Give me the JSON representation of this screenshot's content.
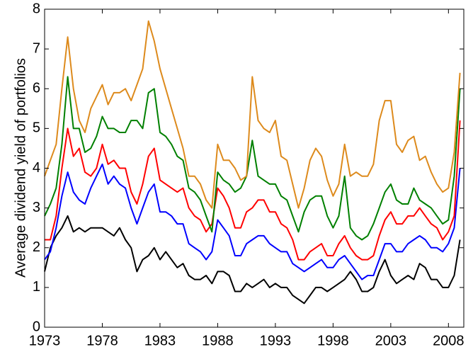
{
  "chart_data": {
    "type": "line",
    "y_label": "Average dividend yield of portfolios",
    "x": [
      1973,
      1973.5,
      1974,
      1974.5,
      1975,
      1975.5,
      1976,
      1976.5,
      1977,
      1977.5,
      1978,
      1978.5,
      1979,
      1979.5,
      1980,
      1980.5,
      1981,
      1981.5,
      1982,
      1982.5,
      1983,
      1983.5,
      1984,
      1984.5,
      1985,
      1985.5,
      1986,
      1986.5,
      1987,
      1987.5,
      1988,
      1988.5,
      1989,
      1989.5,
      1990,
      1990.5,
      1991,
      1991.5,
      1992,
      1992.5,
      1993,
      1993.5,
      1994,
      1994.5,
      1995,
      1995.5,
      1996,
      1996.5,
      1997,
      1997.5,
      1998,
      1998.5,
      1999,
      1999.5,
      2000,
      2000.5,
      2001,
      2001.5,
      2002,
      2002.5,
      2003,
      2003.5,
      2004,
      2004.5,
      2005,
      2005.5,
      2006,
      2006.5,
      2007,
      2007.5,
      2008,
      2008.5,
      2009
    ],
    "series": [
      {
        "color": "#000000",
        "values": [
          1.4,
          2.0,
          2.3,
          2.5,
          2.8,
          2.4,
          2.5,
          2.4,
          2.5,
          2.5,
          2.5,
          2.4,
          2.3,
          2.5,
          2.2,
          2.0,
          1.4,
          1.7,
          1.8,
          2.0,
          1.7,
          1.9,
          1.7,
          1.5,
          1.6,
          1.3,
          1.2,
          1.2,
          1.3,
          1.1,
          1.4,
          1.4,
          1.3,
          0.9,
          0.9,
          1.1,
          1.0,
          1.1,
          1.2,
          1.0,
          1.1,
          1.0,
          1.0,
          0.8,
          0.7,
          0.6,
          0.8,
          1.0,
          1.0,
          0.9,
          1.0,
          1.1,
          1.2,
          1.4,
          1.2,
          0.9,
          0.9,
          1.0,
          1.4,
          1.7,
          1.3,
          1.1,
          1.2,
          1.3,
          1.2,
          1.6,
          1.5,
          1.2,
          1.2,
          1.0,
          1.0,
          1.3,
          2.2
        ]
      },
      {
        "color": "#0000ff",
        "values": [
          1.7,
          1.9,
          2.5,
          3.3,
          3.9,
          3.4,
          3.2,
          3.1,
          3.5,
          3.8,
          4.1,
          3.6,
          3.8,
          3.6,
          3.5,
          3.0,
          2.6,
          3.0,
          3.4,
          3.6,
          2.9,
          2.9,
          2.8,
          2.6,
          2.6,
          2.1,
          2.0,
          1.9,
          1.7,
          1.9,
          2.7,
          2.5,
          2.3,
          1.8,
          1.8,
          2.1,
          2.2,
          2.3,
          2.3,
          2.1,
          2.0,
          1.9,
          1.9,
          1.6,
          1.5,
          1.4,
          1.5,
          1.6,
          1.7,
          1.5,
          1.5,
          1.7,
          1.8,
          1.6,
          1.4,
          1.2,
          1.3,
          1.3,
          1.7,
          2.1,
          2.1,
          1.9,
          1.9,
          2.1,
          2.2,
          2.3,
          2.2,
          2.0,
          2.0,
          1.9,
          2.1,
          2.5,
          4.0
        ]
      },
      {
        "color": "#ff0000",
        "values": [
          2.2,
          2.2,
          2.8,
          4.0,
          5.0,
          4.3,
          4.5,
          3.9,
          3.8,
          4.0,
          4.6,
          4.1,
          4.2,
          4.0,
          4.0,
          3.4,
          3.1,
          3.6,
          4.3,
          4.5,
          3.7,
          3.6,
          3.5,
          3.4,
          3.5,
          3.0,
          2.8,
          2.7,
          2.4,
          2.6,
          3.5,
          3.3,
          3.0,
          2.5,
          2.5,
          2.9,
          3.0,
          3.2,
          3.2,
          2.9,
          2.9,
          2.6,
          2.5,
          2.2,
          1.7,
          1.7,
          1.9,
          2.0,
          2.1,
          1.8,
          1.8,
          2.1,
          2.3,
          2.0,
          1.8,
          1.7,
          1.7,
          1.8,
          2.3,
          2.7,
          2.9,
          2.6,
          2.6,
          2.8,
          2.8,
          3.0,
          2.8,
          2.6,
          2.5,
          2.2,
          2.4,
          2.8,
          5.2
        ]
      },
      {
        "color": "#008000",
        "values": [
          2.8,
          3.1,
          3.5,
          4.6,
          6.3,
          5.0,
          5.0,
          4.4,
          4.5,
          4.8,
          5.3,
          5.0,
          5.0,
          4.9,
          4.9,
          5.2,
          5.2,
          5.0,
          5.9,
          6.0,
          4.9,
          4.8,
          4.6,
          4.3,
          4.2,
          3.5,
          3.4,
          3.2,
          2.8,
          2.4,
          3.9,
          3.7,
          3.6,
          3.4,
          3.5,
          3.8,
          4.7,
          3.8,
          3.7,
          3.6,
          3.6,
          3.3,
          3.2,
          2.8,
          2.4,
          2.9,
          3.2,
          3.3,
          3.3,
          2.8,
          2.5,
          2.8,
          3.8,
          2.5,
          2.3,
          2.2,
          2.3,
          2.6,
          3.0,
          3.4,
          3.6,
          3.2,
          3.1,
          3.1,
          3.5,
          3.2,
          3.1,
          3.0,
          2.8,
          2.6,
          2.7,
          3.8,
          6.0
        ]
      },
      {
        "color": "#dd8a1c",
        "values": [
          3.8,
          4.2,
          4.6,
          6.0,
          7.3,
          6.0,
          5.2,
          4.9,
          5.5,
          5.8,
          6.1,
          5.6,
          5.9,
          5.9,
          6.0,
          5.7,
          6.1,
          6.5,
          7.7,
          7.2,
          6.5,
          6.0,
          5.5,
          5.0,
          4.5,
          3.8,
          3.8,
          3.6,
          3.2,
          3.0,
          4.6,
          4.2,
          4.2,
          4.0,
          3.7,
          3.8,
          6.3,
          5.2,
          5.0,
          4.9,
          5.2,
          4.3,
          4.2,
          3.6,
          3.0,
          3.5,
          4.2,
          4.5,
          4.3,
          3.7,
          3.3,
          3.6,
          4.6,
          3.8,
          3.9,
          3.8,
          3.8,
          4.1,
          5.2,
          5.7,
          5.7,
          4.6,
          4.4,
          4.7,
          4.8,
          4.2,
          4.3,
          3.9,
          3.6,
          3.4,
          3.5,
          4.4,
          6.4
        ]
      }
    ],
    "xlim": [
      1973,
      2009.33
    ],
    "xticks": [
      1973,
      1978,
      1983,
      1988,
      1993,
      1998,
      2003,
      2008
    ],
    "ylim": [
      0,
      8
    ],
    "yticks": [
      0,
      1,
      2,
      3,
      4,
      5,
      6,
      7,
      8
    ]
  }
}
